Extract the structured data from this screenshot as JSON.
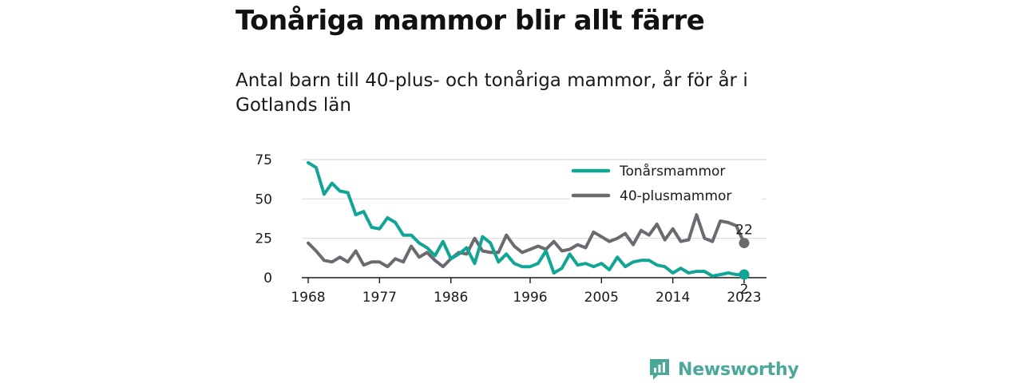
{
  "title": "Tonåriga mammor blir allt färre",
  "subtitle": "Antal barn till 40-plus- och tonåriga mammor, år för år i Gotlands län",
  "brand": {
    "name": "Newsworthy",
    "color": "#4aa79a"
  },
  "chart_data": {
    "type": "line",
    "x": [
      1968,
      1969,
      1970,
      1971,
      1972,
      1973,
      1974,
      1975,
      1976,
      1977,
      1978,
      1979,
      1980,
      1981,
      1982,
      1983,
      1984,
      1985,
      1986,
      1987,
      1988,
      1989,
      1990,
      1991,
      1992,
      1993,
      1994,
      1995,
      1996,
      1997,
      1998,
      1999,
      2000,
      2001,
      2002,
      2003,
      2004,
      2005,
      2006,
      2007,
      2008,
      2009,
      2010,
      2011,
      2012,
      2013,
      2014,
      2015,
      2016,
      2017,
      2018,
      2019,
      2020,
      2021,
      2022,
      2023
    ],
    "x_ticks": [
      "1968",
      "1977",
      "1986",
      "1996",
      "2005",
      "2014",
      "2023"
    ],
    "x_tick_values": [
      1968,
      1977,
      1986,
      1996,
      2005,
      2014,
      2023
    ],
    "y_ticks": [
      "0",
      "25",
      "50",
      "75"
    ],
    "y_tick_values": [
      0,
      25,
      50,
      75
    ],
    "ylim": [
      0,
      75
    ],
    "xlim": [
      1968,
      2023
    ],
    "grid": "horizontal",
    "legend_position": "top-right",
    "series": [
      {
        "name": "Tonårsmammor",
        "color": "#10a595",
        "values": [
          73,
          70,
          53,
          60,
          55,
          54,
          40,
          42,
          32,
          31,
          38,
          35,
          27,
          27,
          22,
          19,
          14,
          23,
          12,
          15,
          19,
          9,
          26,
          22,
          10,
          15,
          9,
          7,
          7,
          9,
          17,
          3,
          6,
          15,
          8,
          9,
          7,
          9,
          5,
          13,
          7,
          10,
          11,
          11,
          8,
          7,
          3,
          6,
          3,
          4,
          4,
          1,
          2,
          3,
          2,
          2
        ],
        "end_label": "2"
      },
      {
        "name": "40-plusmammor",
        "color": "#6b6a70",
        "values": [
          22,
          17,
          11,
          10,
          13,
          10,
          17,
          8,
          10,
          10,
          7,
          12,
          10,
          20,
          13,
          16,
          11,
          7,
          12,
          16,
          15,
          25,
          17,
          16,
          16,
          27,
          20,
          16,
          18,
          20,
          18,
          23,
          17,
          18,
          21,
          19,
          29,
          26,
          23,
          25,
          28,
          21,
          30,
          27,
          34,
          24,
          31,
          23,
          24,
          40,
          25,
          23,
          36,
          35,
          33,
          22
        ],
        "end_label": "22"
      }
    ]
  }
}
